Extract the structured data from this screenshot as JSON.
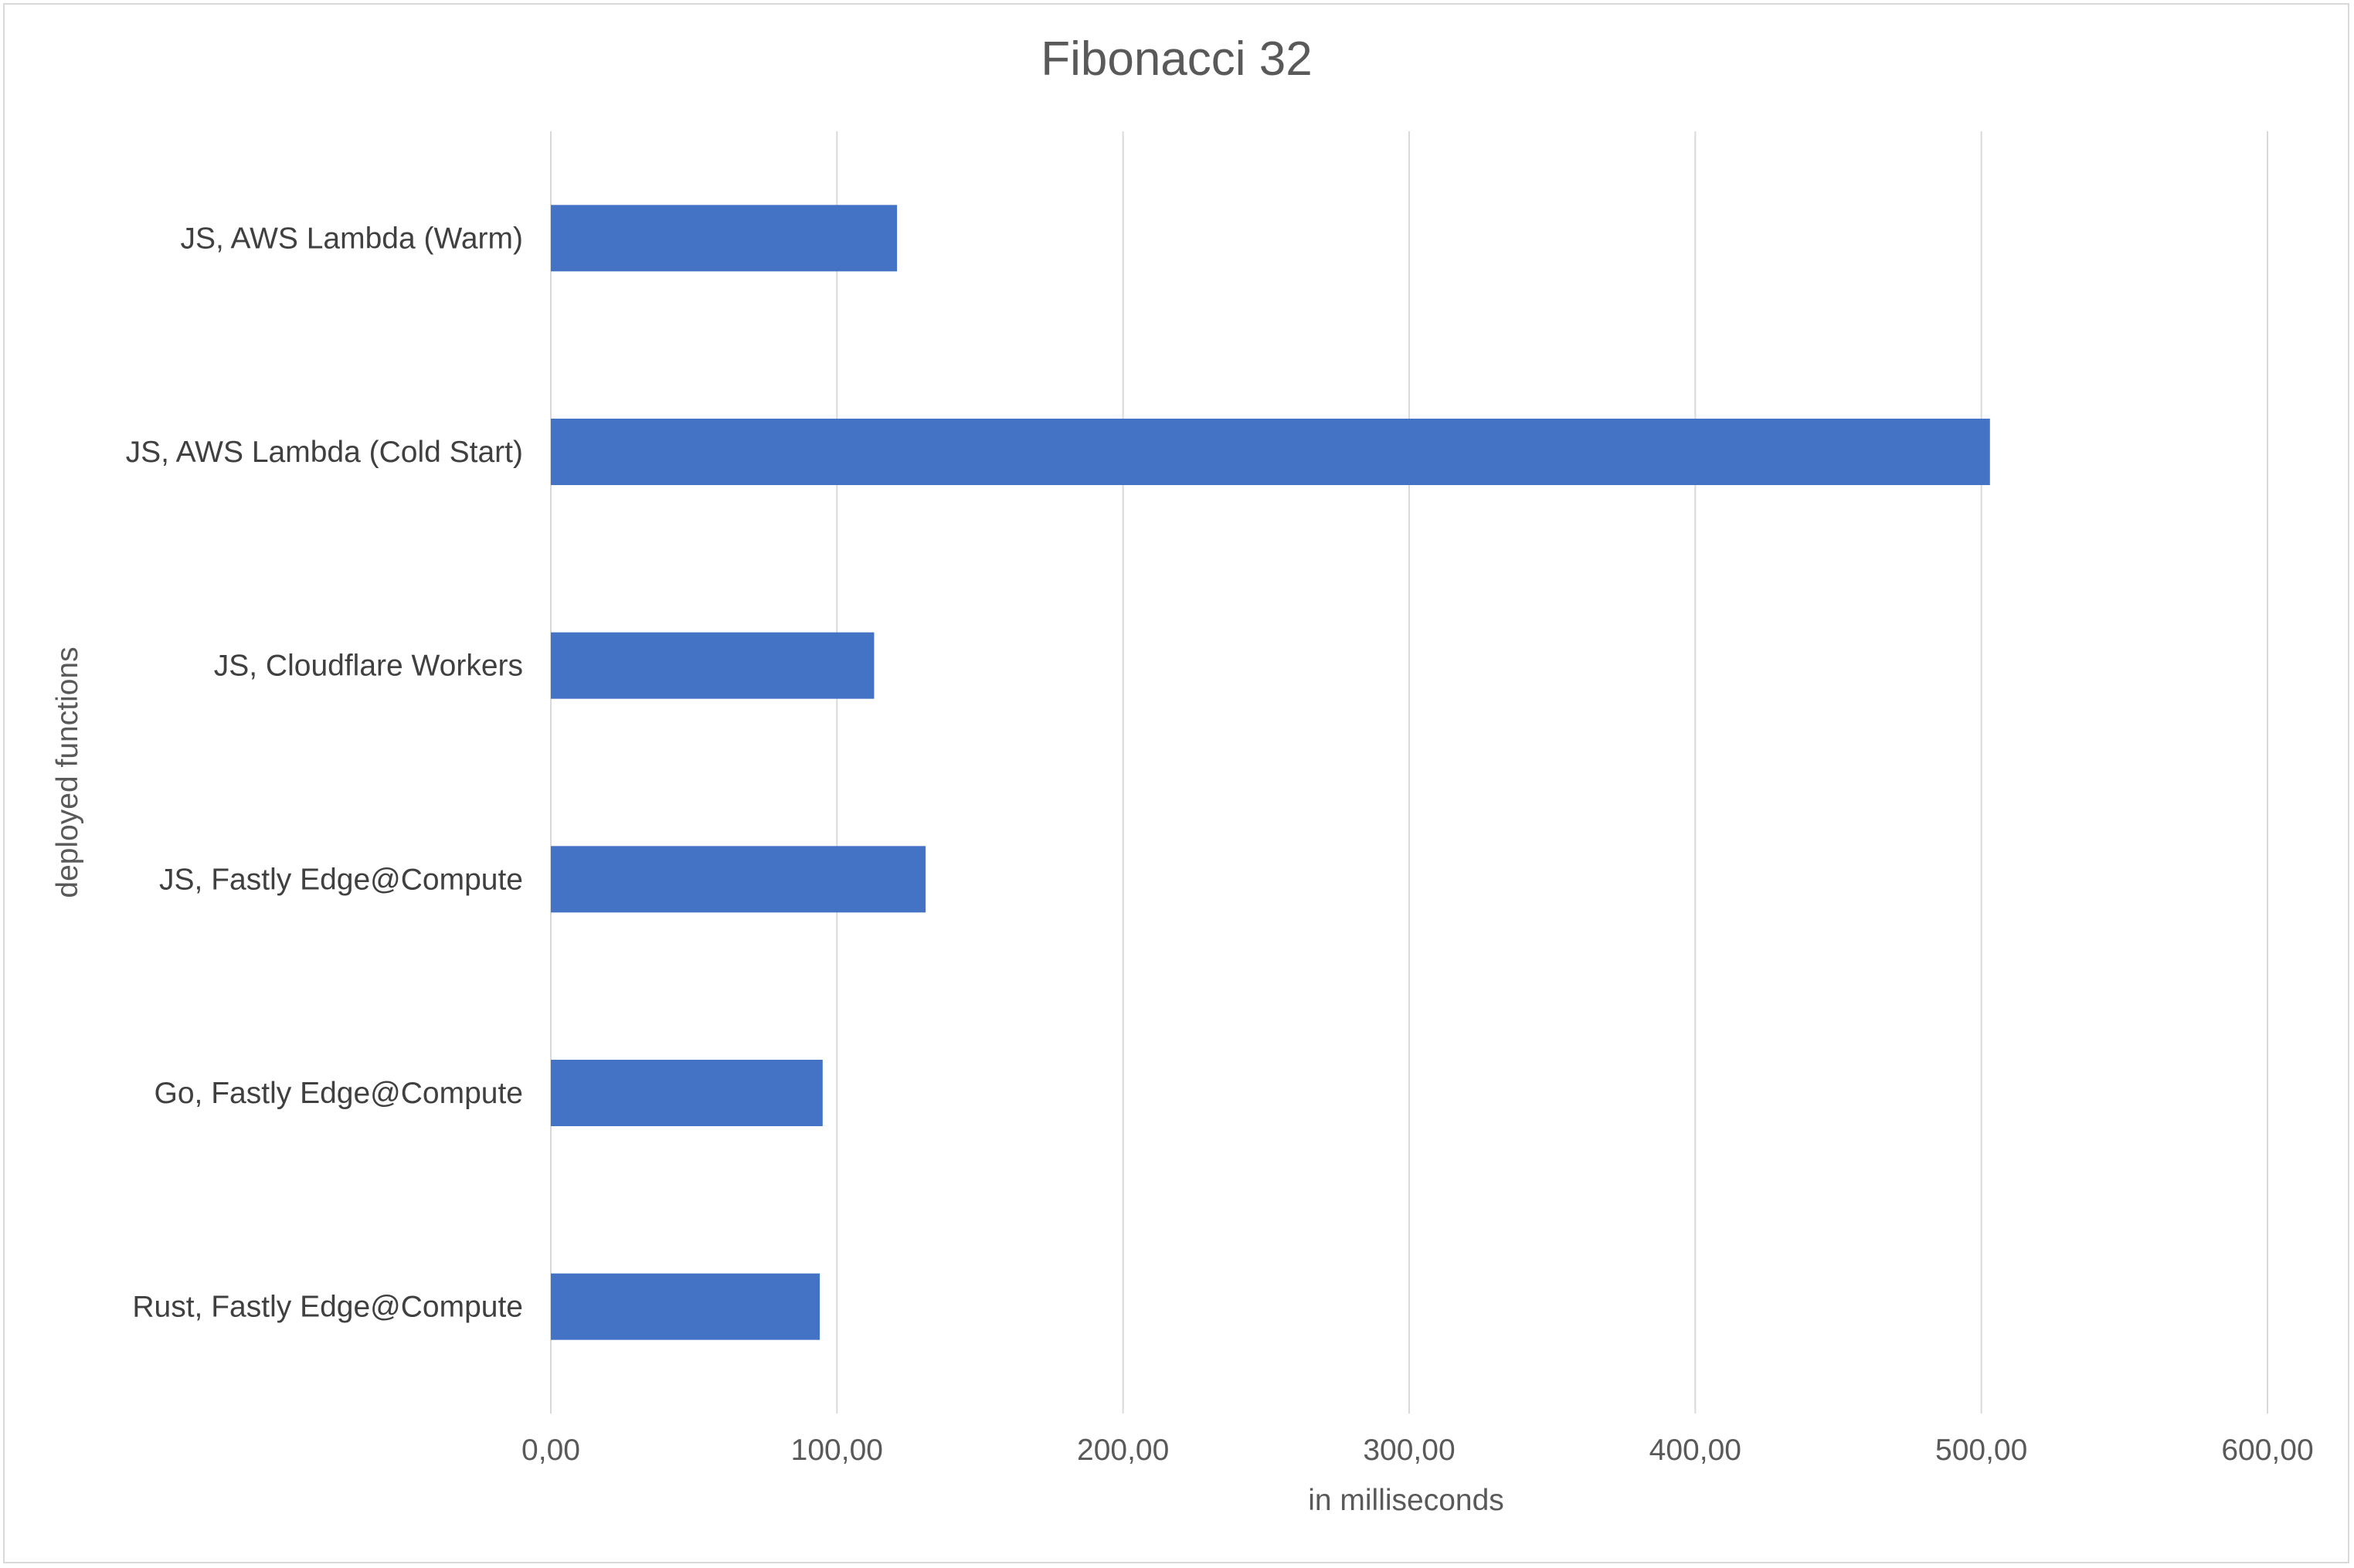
{
  "chart_data": {
    "type": "bar",
    "orientation": "horizontal",
    "title": "Fibonacci 32",
    "xlabel": "in milliseconds",
    "ylabel": "deployed functions",
    "categories": [
      "JS, AWS Lambda (Warm)",
      "JS, AWS Lambda (Cold Start)",
      "JS, Cloudflare Workers",
      "JS,  Fastly Edge@Compute",
      "Go, Fastly Edge@Compute",
      "Rust, Fastly Edge@Compute"
    ],
    "values": [
      121,
      503,
      113,
      131,
      95,
      94
    ],
    "xlim": [
      0,
      600
    ],
    "xticks": [
      0,
      100,
      200,
      300,
      400,
      500,
      600
    ],
    "xtick_labels": [
      "0,00",
      "100,00",
      "200,00",
      "300,00",
      "400,00",
      "500,00",
      "600,00"
    ],
    "grid": "vertical",
    "legend": "none",
    "bar_color": "#4472C4",
    "grid_color": "#d9d9d9"
  }
}
